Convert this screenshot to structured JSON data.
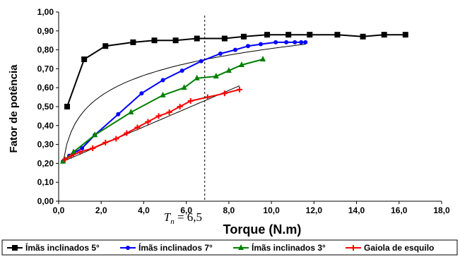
{
  "chart_data": {
    "type": "line",
    "title": "",
    "xlabel": "Torque (N.m)",
    "ylabel": "Fator de potência",
    "xlim": [
      0,
      18
    ],
    "ylim": [
      0,
      1
    ],
    "x_ticks": [
      "0,0",
      "2,0",
      "4,0",
      "6,0",
      "8,0",
      "10,0",
      "12,0",
      "14,0",
      "16,0",
      "18,0"
    ],
    "y_ticks": [
      "0,00",
      "0,10",
      "0,20",
      "0,30",
      "0,40",
      "0,50",
      "0,60",
      "0,70",
      "0,80",
      "0,90",
      "1,00"
    ],
    "grid": false,
    "legend_position": "bottom",
    "annotation": {
      "text_T": "T",
      "text_sub": "n",
      "text_value": " = 6,5",
      "x": 6.5
    },
    "series": [
      {
        "name": "Ímãs inclinados 5°",
        "color": "#000000",
        "marker": "square",
        "x": [
          0.4,
          1.2,
          2.2,
          3.5,
          4.5,
          5.5,
          6.5,
          7.8,
          8.7,
          9.8,
          10.8,
          11.8,
          13.1,
          14.3,
          15.3,
          16.3
        ],
        "y": [
          0.5,
          0.75,
          0.82,
          0.84,
          0.85,
          0.85,
          0.86,
          0.86,
          0.87,
          0.88,
          0.88,
          0.88,
          0.88,
          0.87,
          0.88,
          0.88
        ]
      },
      {
        "name": "Ímãs inclinados 7°",
        "color": "#0000ff",
        "marker": "circle",
        "x": [
          0.2,
          0.5,
          1.1,
          1.7,
          2.8,
          3.9,
          4.9,
          5.8,
          6.7,
          7.6,
          8.3,
          8.9,
          9.5,
          10.2,
          10.7,
          11.1,
          11.4,
          11.6
        ],
        "y": [
          0.21,
          0.24,
          0.28,
          0.35,
          0.46,
          0.57,
          0.64,
          0.69,
          0.74,
          0.78,
          0.8,
          0.82,
          0.83,
          0.84,
          0.84,
          0.84,
          0.84,
          0.84
        ]
      },
      {
        "name": "Ímãs inclinados 3°",
        "color": "#008000",
        "marker": "triangle",
        "x": [
          0.2,
          0.7,
          1.7,
          3.4,
          4.9,
          5.9,
          6.5,
          7.4,
          8.0,
          8.6,
          9.6
        ],
        "y": [
          0.21,
          0.26,
          0.35,
          0.47,
          0.56,
          0.6,
          0.65,
          0.66,
          0.69,
          0.72,
          0.75
        ]
      },
      {
        "name": "Gaiola de esquilo",
        "color": "#ff0000",
        "marker": "plus",
        "x": [
          0.3,
          0.6,
          1.0,
          1.6,
          2.2,
          2.7,
          3.2,
          3.7,
          4.2,
          4.7,
          5.2,
          5.7,
          6.2,
          7.0,
          7.8,
          8.5
        ],
        "y": [
          0.22,
          0.24,
          0.26,
          0.28,
          0.31,
          0.33,
          0.36,
          0.39,
          0.42,
          0.45,
          0.47,
          0.5,
          0.53,
          0.55,
          0.57,
          0.59
        ]
      }
    ],
    "trendlines": [
      {
        "color": "#000000",
        "type": "log",
        "x": [
          0.2,
          11.6
        ],
        "y": [
          0.2,
          0.83
        ]
      },
      {
        "color": "#000000",
        "type": "linear",
        "x": [
          0.2,
          8.5
        ],
        "y": [
          0.21,
          0.61
        ]
      }
    ]
  }
}
